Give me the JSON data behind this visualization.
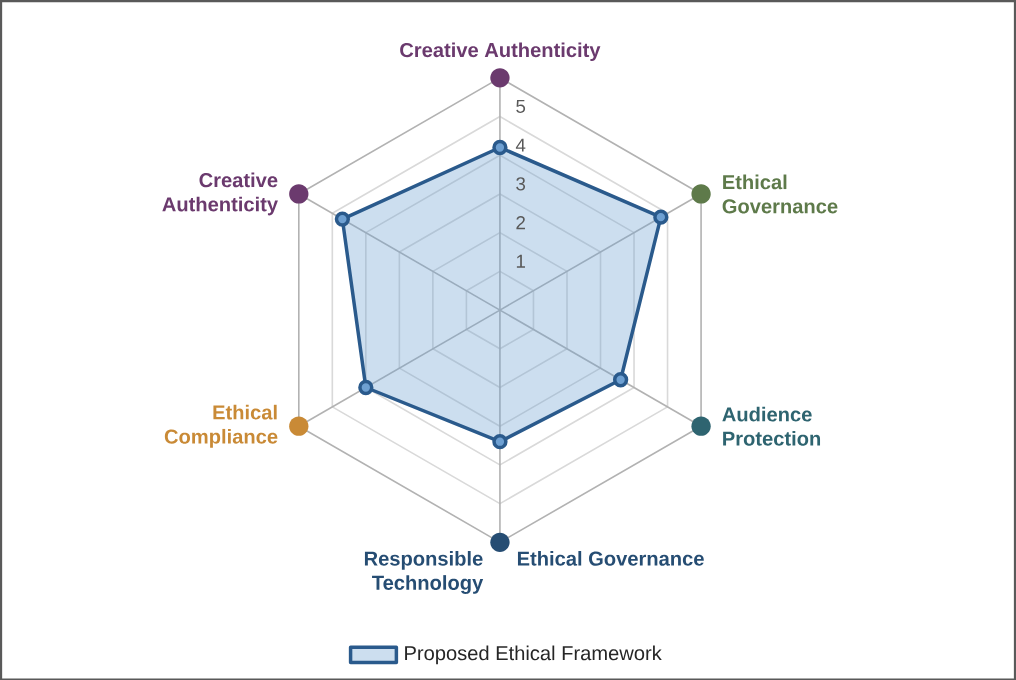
{
  "chart_data": {
    "type": "radar",
    "categories": [
      "Creative Authenticity",
      "Ethical Governance",
      "Audience Protection",
      "Responsible Technology",
      "Ethical Compliance",
      "Creative Authenticity"
    ],
    "colors": [
      "#6b3a6e",
      "#5e7a4a",
      "#2e6470",
      "#264d73",
      "#c98a36",
      "#6b3a6e"
    ],
    "series": [
      {
        "name": "Proposed Ethical Framework",
        "color": "#2a5a8c",
        "values": [
          4.2,
          4.8,
          3.6,
          3.4,
          4.0,
          4.7
        ]
      }
    ],
    "ylim": [
      0,
      6
    ],
    "yticks": [
      1,
      2,
      3,
      4,
      5
    ],
    "annotations": [
      "Ethical Governance"
    ],
    "grid": true,
    "legend": "bottom",
    "marker": "circle"
  }
}
